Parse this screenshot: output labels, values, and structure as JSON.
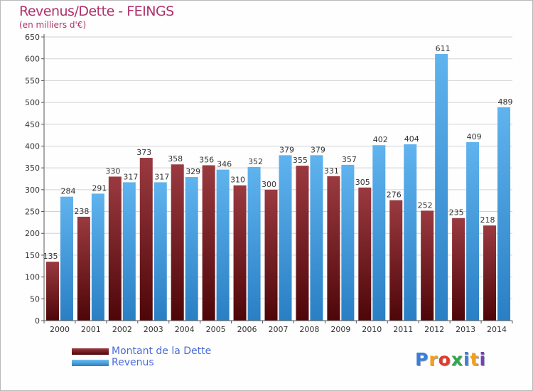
{
  "title": "Revenus/Dette - FEINGS",
  "subtitle": "(en milliers d'€)",
  "logo": {
    "text": "Proxiti",
    "letter_colors": [
      "#3a7fd5",
      "#f0a020",
      "#e23a2a",
      "#2fa84a",
      "#3a7fd5",
      "#f0a020",
      "#7a3fb8"
    ]
  },
  "colors": {
    "dette": "#7a1f24",
    "revenus": "#4aa3e4",
    "title": "#b0306a",
    "legend_text": "#4a6bd8"
  },
  "chart_data": {
    "type": "bar",
    "title": "Revenus/Dette - FEINGS",
    "subtitle": "(en milliers d'€)",
    "xlabel": "",
    "ylabel": "",
    "ylim": [
      0,
      650
    ],
    "ytick_step": 50,
    "yticks": [
      "0",
      "50",
      "100",
      "150",
      "200",
      "250",
      "300",
      "350",
      "400",
      "450",
      "500",
      "550",
      "600",
      "650"
    ],
    "grid": true,
    "legend_position": "bottom-left",
    "categories": [
      "2000",
      "2001",
      "2002",
      "2003",
      "2004",
      "2005",
      "2006",
      "2007",
      "2008",
      "2009",
      "2010",
      "2011",
      "2012",
      "2013",
      "2014"
    ],
    "series": [
      {
        "name": "Montant de la Dette",
        "color": "#7a1f24",
        "values": [
          135,
          238,
          330,
          373,
          358,
          356,
          310,
          300,
          355,
          331,
          305,
          276,
          252,
          235,
          218
        ],
        "labels": [
          "135",
          "238",
          "330",
          "373",
          "358",
          "356",
          "310",
          "300",
          "355",
          "331",
          "305",
          "276",
          "252",
          "235",
          "218"
        ]
      },
      {
        "name": "Revenus",
        "color": "#4aa3e4",
        "values": [
          284,
          291,
          317,
          317,
          329,
          346,
          352,
          379,
          379,
          357,
          402,
          404,
          611,
          409,
          489
        ],
        "labels": [
          "284",
          "291",
          "317",
          "317",
          "329",
          "346",
          "352",
          "379",
          "379",
          "357",
          "402",
          "404",
          "611",
          "409",
          "489"
        ]
      }
    ]
  }
}
